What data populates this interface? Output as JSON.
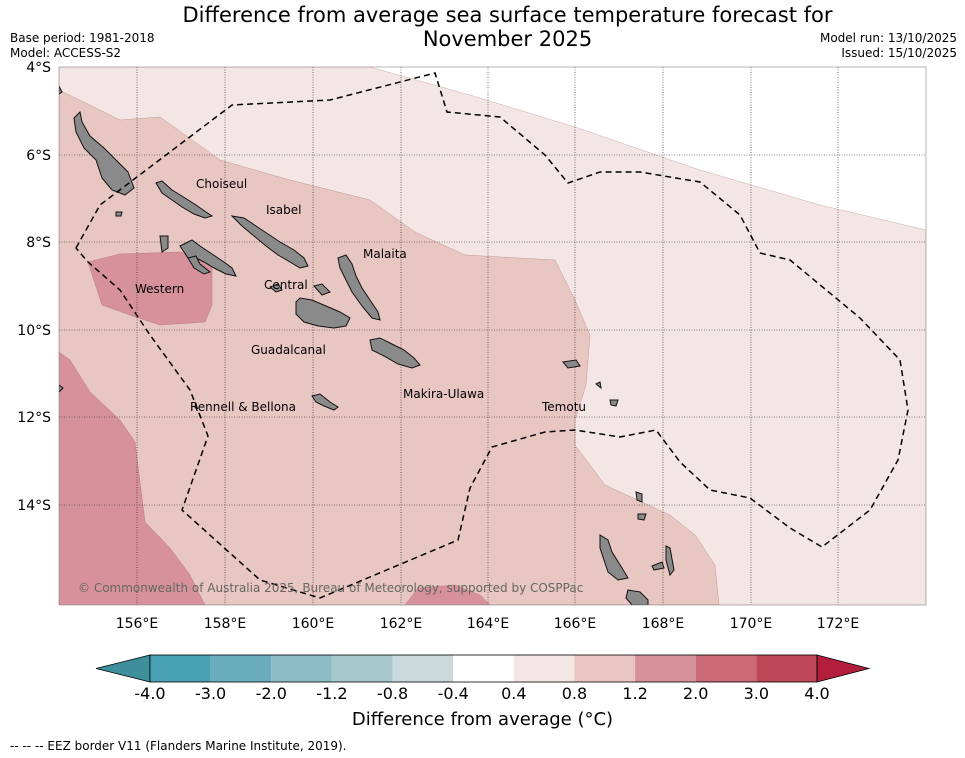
{
  "header": {
    "title_line1": "Difference from average sea surface temperature forecast for",
    "title_line2": "November 2025",
    "base_period": "Base period: 1981-2018",
    "model": "Model: ACCESS-S2",
    "model_run": "Model run: 13/10/2025",
    "issued": "Issued: 15/10/2025"
  },
  "map": {
    "lat_labels": [
      "4°S",
      "6°S",
      "8°S",
      "10°S",
      "12°S",
      "14°S"
    ],
    "lon_labels": [
      "156°E",
      "158°E",
      "160°E",
      "162°E",
      "164°E",
      "166°E",
      "168°E",
      "170°E",
      "172°E"
    ],
    "provinces": [
      "Choiseul",
      "Isabel",
      "Malaita",
      "Western",
      "Central",
      "Guadalcanal",
      "Makira-Ulawa",
      "Rennell & Bellona",
      "Temotu"
    ],
    "copyright": "© Commonwealth of Australia 2025, Bureau of Meteorology, supported by COSPPac"
  },
  "colorbar": {
    "title": "Difference from average (°C)",
    "tick_labels": [
      "-4.0",
      "-3.0",
      "-2.0",
      "-1.2",
      "-0.8",
      "-0.4",
      "0.4",
      "0.8",
      "1.2",
      "2.0",
      "3.0",
      "4.0"
    ],
    "colors": [
      "#3d8f9c",
      "#49a2b4",
      "#6aaebd",
      "#8dbcc6",
      "#a9c8cc",
      "#c9d9dc",
      "#ffffff",
      "#f4e6e4",
      "#e8c6c2",
      "#d6919a",
      "#c96a75",
      "#bf4655",
      "#b21e3c"
    ]
  },
  "footer": {
    "legend_text": "--  --  -- EEZ border V11 (Flanders Marine Institute, 2019)."
  }
}
